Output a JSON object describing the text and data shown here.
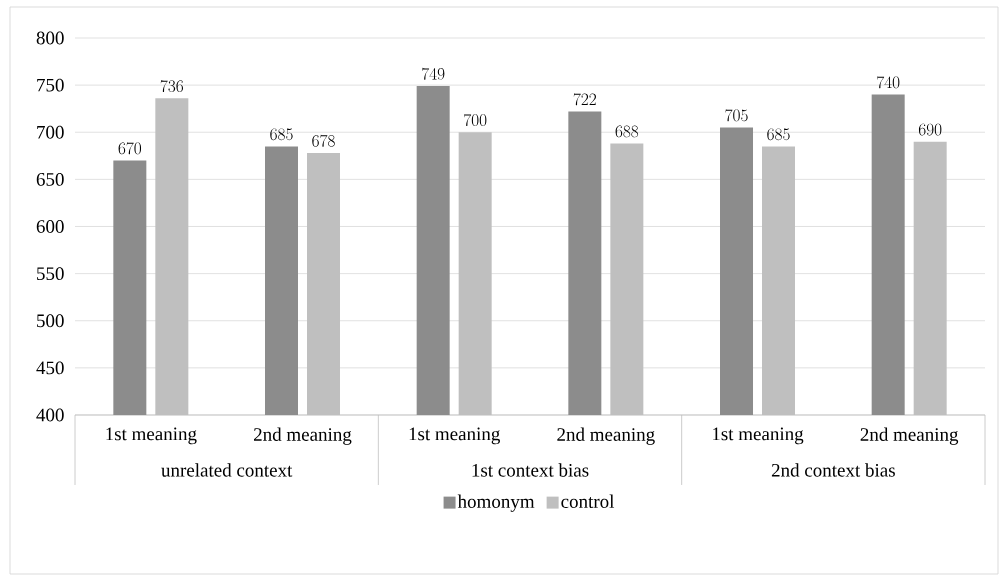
{
  "chart_data": {
    "type": "bar",
    "categories": [
      "1st meaning",
      "2nd meaning",
      "1st meaning",
      "2nd meaning",
      "1st meaning",
      "2nd meaning"
    ],
    "annotations": [
      "unrelated context",
      "1st context bias",
      "2nd context bias"
    ],
    "series": [
      {
        "name": "homonym",
        "color": "#8c8c8c",
        "values": [
          670,
          685,
          749,
          722,
          705,
          740
        ]
      },
      {
        "name": "control",
        "color": "#bfbfbf",
        "values": [
          736,
          678,
          700,
          688,
          685,
          690
        ]
      }
    ],
    "ylim": [
      400,
      800
    ],
    "yticks": [
      400,
      450,
      500,
      550,
      600,
      650,
      700,
      750,
      800
    ],
    "grid": "y",
    "legend": "bottom",
    "data_labels": true
  }
}
